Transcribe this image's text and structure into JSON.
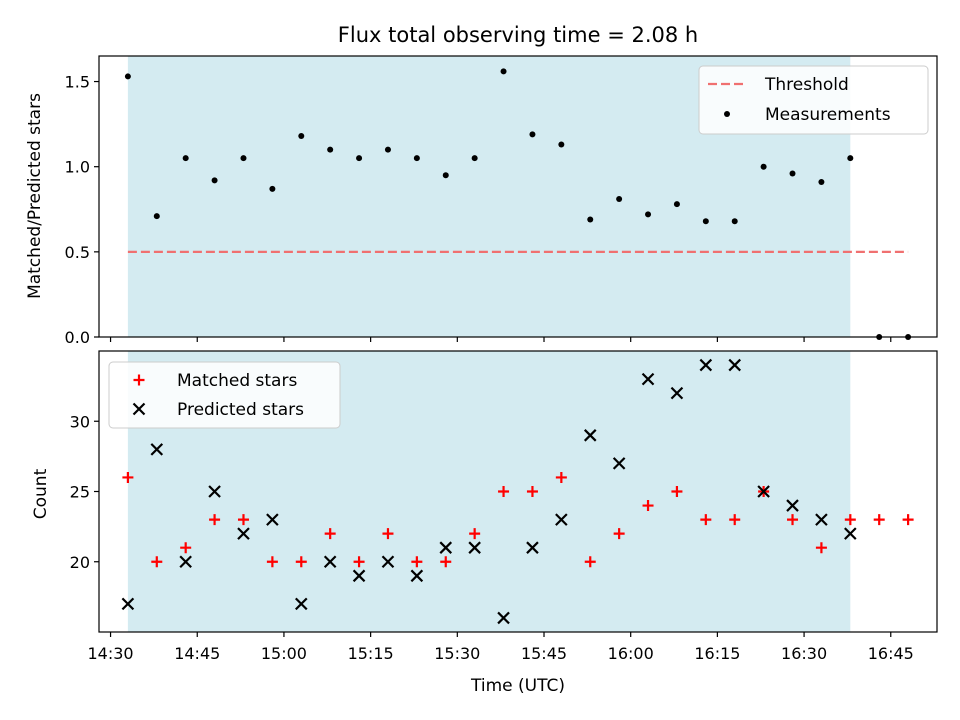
{
  "chart_data": [
    {
      "type": "scatter",
      "title": "Flux total observing time = 2.08 h",
      "xlabel": "",
      "ylabel": "Matched/Predicted stars",
      "ylim": [
        0,
        1.65
      ],
      "yticks": [
        0.0,
        0.5,
        1.0,
        1.5
      ],
      "yticklabels": [
        "0.0",
        "0.5",
        "1.0",
        "1.5"
      ],
      "shaded_range": [
        "14:33",
        "16:38"
      ],
      "legend_position": "top-right",
      "threshold": {
        "name": "Threshold",
        "y": 0.5,
        "x_start": "14:33",
        "x_end": "16:48",
        "color": "#f07070"
      },
      "series": [
        {
          "name": "Measurements",
          "color": "#000000",
          "x": [
            "14:33",
            "14:38",
            "14:43",
            "14:48",
            "14:53",
            "14:58",
            "15:03",
            "15:08",
            "15:13",
            "15:18",
            "15:23",
            "15:28",
            "15:33",
            "15:38",
            "15:43",
            "15:48",
            "15:53",
            "15:58",
            "16:03",
            "16:08",
            "16:13",
            "16:18",
            "16:23",
            "16:28",
            "16:33",
            "16:38",
            "16:43",
            "16:48"
          ],
          "y": [
            1.53,
            0.71,
            1.05,
            0.92,
            1.05,
            0.87,
            1.18,
            1.1,
            1.05,
            1.1,
            1.05,
            0.95,
            1.05,
            1.56,
            1.19,
            1.13,
            0.69,
            0.81,
            0.72,
            0.78,
            0.68,
            0.68,
            1.0,
            0.96,
            0.91,
            1.05,
            0.0,
            0.0
          ]
        }
      ]
    },
    {
      "type": "scatter",
      "title": "",
      "xlabel": "Time (UTC)",
      "ylabel": "Count",
      "ylim": [
        15,
        35
      ],
      "yticks": [
        20,
        25,
        30
      ],
      "yticklabels": [
        "20",
        "25",
        "30"
      ],
      "xlim": [
        "14:28",
        "16:53"
      ],
      "xticks": [
        "14:30",
        "14:45",
        "15:00",
        "15:15",
        "15:30",
        "15:45",
        "16:00",
        "16:15",
        "16:30",
        "16:45"
      ],
      "shaded_range": [
        "14:33",
        "16:38"
      ],
      "legend_position": "top-left",
      "series": [
        {
          "name": "Matched stars",
          "marker": "plus",
          "color": "#ff0000",
          "x": [
            "14:33",
            "14:38",
            "14:43",
            "14:48",
            "14:53",
            "14:58",
            "15:03",
            "15:08",
            "15:13",
            "15:18",
            "15:23",
            "15:28",
            "15:33",
            "15:38",
            "15:43",
            "15:48",
            "15:53",
            "15:58",
            "16:03",
            "16:08",
            "16:13",
            "16:18",
            "16:23",
            "16:28",
            "16:33",
            "16:38",
            "16:43",
            "16:48"
          ],
          "y": [
            26,
            20,
            21,
            23,
            23,
            20,
            20,
            22,
            20,
            22,
            20,
            20,
            22,
            25,
            25,
            26,
            20,
            22,
            24,
            25,
            23,
            23,
            25,
            23,
            21,
            23,
            23,
            23
          ]
        },
        {
          "name": "Predicted stars",
          "marker": "x",
          "color": "#000000",
          "x": [
            "14:33",
            "14:38",
            "14:43",
            "14:48",
            "14:53",
            "14:58",
            "15:03",
            "15:08",
            "15:13",
            "15:18",
            "15:23",
            "15:28",
            "15:33",
            "15:38",
            "15:43",
            "15:48",
            "15:53",
            "15:58",
            "16:03",
            "16:08",
            "16:13",
            "16:18",
            "16:23",
            "16:28",
            "16:33",
            "16:38"
          ],
          "y": [
            17,
            28,
            20,
            25,
            22,
            23,
            17,
            20,
            19,
            20,
            19,
            21,
            21,
            16,
            21,
            23,
            29,
            27,
            33,
            32,
            34,
            34,
            25,
            24,
            23,
            22
          ]
        }
      ]
    }
  ],
  "colors": {
    "shade": "#d4ebf1",
    "axis": "#000000",
    "background": "#ffffff"
  }
}
